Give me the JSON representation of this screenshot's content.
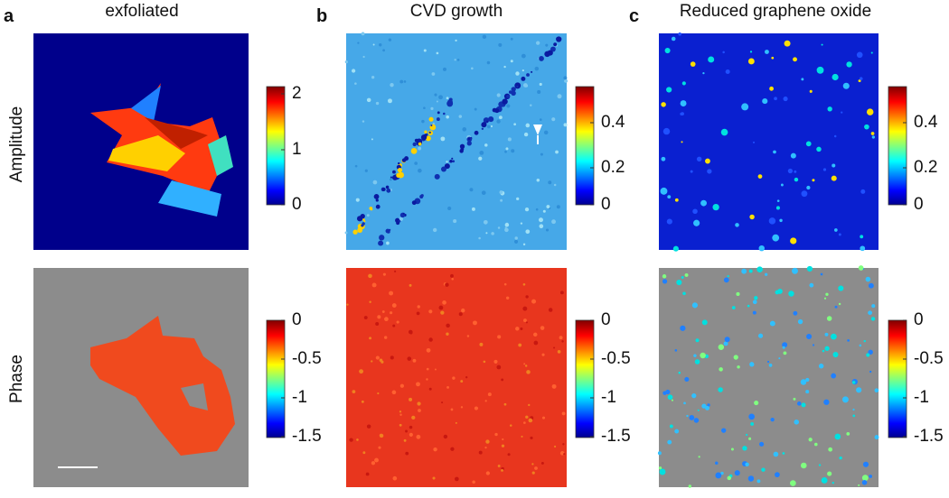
{
  "rows": [
    "Amplitude",
    "Phase"
  ],
  "panels": [
    {
      "label": "a",
      "title": "exfoliated",
      "amplitude_colorbar": [
        "2",
        "1",
        "0"
      ],
      "phase_colorbar": [
        "0",
        "-0.5",
        "-1",
        "-1.5"
      ]
    },
    {
      "label": "b",
      "title": "CVD growth",
      "amplitude_colorbar": [
        "0.4",
        "0.2",
        "0"
      ],
      "phase_colorbar": [
        "0",
        "-0.5",
        "-1",
        "-1.5"
      ]
    },
    {
      "label": "c",
      "title": "Reduced graphene oxide",
      "amplitude_colorbar": [
        "0.4",
        "0.2",
        "0"
      ],
      "phase_colorbar": [
        "0",
        "-0.5",
        "-1",
        "-1.5"
      ]
    }
  ]
}
